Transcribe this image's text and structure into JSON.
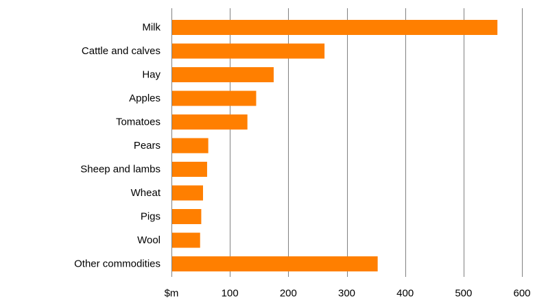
{
  "chart_data": {
    "type": "bar",
    "orientation": "horizontal",
    "categories": [
      "Milk",
      "Cattle and calves",
      "Hay",
      "Apples",
      "Tomatoes",
      "Pears",
      "Sheep and lambs",
      "Wheat",
      "Pigs",
      "Wool",
      "Other commodities"
    ],
    "values": [
      558,
      262,
      175,
      145,
      130,
      63,
      61,
      54,
      51,
      49,
      353
    ],
    "xlim": [
      0,
      600
    ],
    "x_ticks": [
      0,
      100,
      200,
      300,
      400,
      500,
      600
    ],
    "x_tick_labels": [
      "$m",
      "100",
      "200",
      "300",
      "400",
      "500",
      "600"
    ],
    "grid": "vertical",
    "legend": "none",
    "title": "",
    "xlabel": "",
    "ylabel": ""
  },
  "colors": {
    "bar": "#ff7f00",
    "grid": "#7f7f7f",
    "text": "#000000"
  }
}
